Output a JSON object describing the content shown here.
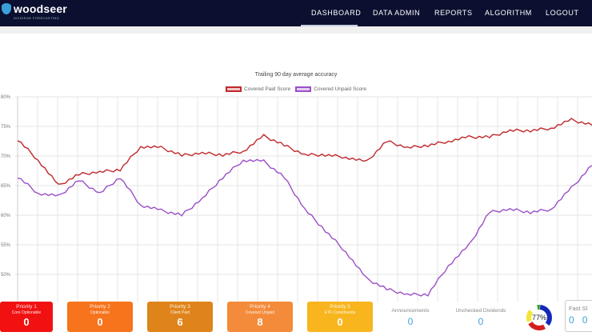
{
  "header": {
    "logo_text": "woodseer",
    "logo_subtitle": "DIVIDEND FORECASTING",
    "nav": [
      "DASHBOARD",
      "DATA ADMIN",
      "REPORTS",
      "ALGORITHM",
      "LOGOUT"
    ],
    "active_nav": "DASHBOARD",
    "background": "#0b1030"
  },
  "chart_data": {
    "type": "line",
    "title": "Trailing 90 day average accuracy",
    "xlabel": "",
    "ylabel": "",
    "ylim": [
      45,
      80
    ],
    "yticks": [
      "80%",
      "75%",
      "70%",
      "65%",
      "60%",
      "55%",
      "50%"
    ],
    "ytick_values": [
      80,
      75,
      70,
      65,
      60,
      55,
      50
    ],
    "grid": true,
    "legend": "top",
    "series": [
      {
        "name": "Covered Paid Score",
        "color": "#c0282b",
        "values": [
          72.8,
          69.3,
          65.0,
          66.9,
          67.3,
          67.7,
          71.6,
          71.4,
          70.1,
          70.5,
          70.2,
          70.8,
          73.4,
          71.8,
          70.2,
          70.2,
          69.8,
          69.0,
          72.5,
          71.4,
          71.8,
          72.5,
          73.2,
          73.2,
          74.3,
          74.3,
          74.7,
          76.1,
          75.2
        ]
      },
      {
        "name": "Covered Unpaid Score",
        "color": "#9b4fc6",
        "values": [
          66.5,
          63.7,
          63.2,
          65.9,
          63.7,
          66.4,
          61.7,
          60.8,
          60.0,
          62.8,
          66.4,
          69.3,
          69.1,
          66.4,
          61.0,
          57.4,
          53.8,
          49.3,
          47.5,
          46.6,
          46.6,
          51.5,
          54.9,
          60.5,
          61.0,
          60.5,
          61.0,
          64.6,
          68.4
        ]
      }
    ]
  },
  "priorities": [
    {
      "title": "Priority 1",
      "subtitle": "Core Optionable",
      "count": "0",
      "color": "#f21111"
    },
    {
      "title": "Priority 2",
      "subtitle": "Optionable",
      "count": "0",
      "color": "#f7731c"
    },
    {
      "title": "Priority 3",
      "subtitle": "Client Paid",
      "count": "6",
      "color": "#df841a"
    },
    {
      "title": "Priority 4",
      "subtitle": "Covered Unpaid",
      "count": "8",
      "color": "#f48b3a"
    },
    {
      "title": "Priority 5",
      "subtitle": "ETF Constituents",
      "count": "0",
      "color": "#f8b51e"
    }
  ],
  "stats": {
    "announcements": {
      "label": "Announcements",
      "value": "0"
    },
    "unchecked": {
      "label": "Unchecked Dividends",
      "value": "0"
    },
    "gauge": {
      "label": "77%",
      "value": 77
    },
    "fast": {
      "label": "Fast Sl",
      "values": [
        "0",
        "0"
      ]
    }
  }
}
